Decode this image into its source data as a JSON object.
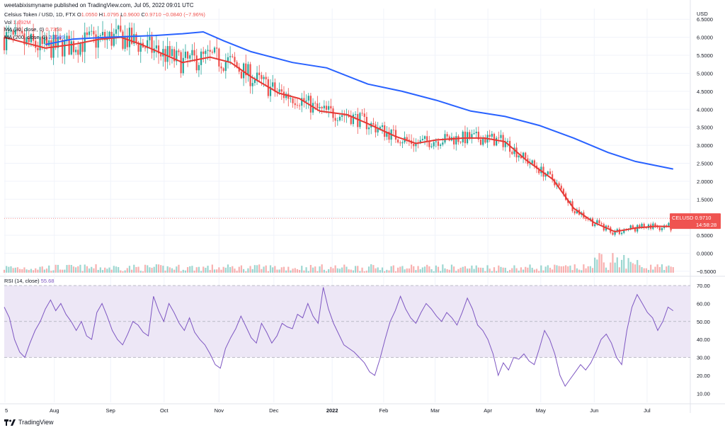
{
  "header": {
    "publisher_line": "weetabixismyname published on TradingView.com, Jul 05, 2022 09:01 UTC"
  },
  "legend": {
    "symbol": "Celsius Token / USD, 1D, FTX",
    "o_label": "O",
    "o_value": "1.0550",
    "h_label": "H",
    "h_value": "1.0795",
    "l_label": "L",
    "l_value": "0.9600",
    "c_label": "C",
    "c_value": "0.9710",
    "change": "−0.0840 (−7.96%)",
    "vol_label": "Vol",
    "vol_value": "1.992M",
    "ma30_label": "MA (30, close, 0)",
    "ma30_value": "0.7358",
    "ma200_label": "MA (200, close, 0)",
    "ma200_value": "2.3389"
  },
  "rsi_legend": {
    "label": "RSI (14, close)",
    "value": "55.68"
  },
  "footer": {
    "brand": "TradingView"
  },
  "colors": {
    "up": "#26a69a",
    "down": "#ef5350",
    "ma30": "#e53935",
    "ma200": "#2962ff",
    "rsi": "#7e57c2",
    "rsi_band": "#ede7f6",
    "grid": "#f0f3fa"
  },
  "chart_data": [
    {
      "type": "candlestick",
      "title": "Celsius Token / USD, 1D, FTX",
      "ylabel": "USD",
      "ylim": [
        -0.6,
        6.8
      ],
      "y_ticks": [
        "6.5000",
        "6.0000",
        "5.5000",
        "5.0000",
        "4.5000",
        "4.0000",
        "3.5000",
        "3.0000",
        "2.5000",
        "2.0000",
        "1.5000",
        "1.0000",
        "0.5000",
        "0.0000",
        "−0.5000"
      ],
      "x_ticks": [
        "5",
        "Aug",
        "Sep",
        "Oct",
        "Nov",
        "Dec",
        "2022",
        "Feb",
        "Mar",
        "Apr",
        "May",
        "Jun",
        "Jul"
      ],
      "last_price_label": {
        "symbol": "CELUSD",
        "price": "0.9710",
        "countdown": "14:58:28",
        "value": 0.971
      },
      "series": [
        {
          "name": "MA (30, close, 0)",
          "points": [
            [
              0,
              6.0
            ],
            [
              0.03,
              5.85
            ],
            [
              0.06,
              5.7
            ],
            [
              0.1,
              5.8
            ],
            [
              0.14,
              5.95
            ],
            [
              0.17,
              6.0
            ],
            [
              0.2,
              5.8
            ],
            [
              0.23,
              5.55
            ],
            [
              0.26,
              5.3
            ],
            [
              0.3,
              5.45
            ],
            [
              0.33,
              5.3
            ],
            [
              0.36,
              4.9
            ],
            [
              0.4,
              4.45
            ],
            [
              0.43,
              4.3
            ],
            [
              0.46,
              3.95
            ],
            [
              0.5,
              3.85
            ],
            [
              0.53,
              3.6
            ],
            [
              0.57,
              3.25
            ],
            [
              0.6,
              3.05
            ],
            [
              0.63,
              3.15
            ],
            [
              0.67,
              3.2
            ],
            [
              0.7,
              3.2
            ],
            [
              0.73,
              3.1
            ],
            [
              0.76,
              2.6
            ],
            [
              0.8,
              2.05
            ],
            [
              0.83,
              1.25
            ],
            [
              0.86,
              0.85
            ],
            [
              0.89,
              0.6
            ],
            [
              0.92,
              0.7
            ],
            [
              0.95,
              0.75
            ],
            [
              0.975,
              0.74
            ]
          ]
        },
        {
          "name": "MA (200, close, 0)",
          "points": [
            [
              0.06,
              5.8
            ],
            [
              0.1,
              5.95
            ],
            [
              0.15,
              6.0
            ],
            [
              0.22,
              6.05
            ],
            [
              0.26,
              6.1
            ],
            [
              0.29,
              6.15
            ],
            [
              0.32,
              5.9
            ],
            [
              0.36,
              5.6
            ],
            [
              0.42,
              5.3
            ],
            [
              0.47,
              5.15
            ],
            [
              0.53,
              4.7
            ],
            [
              0.58,
              4.5
            ],
            [
              0.63,
              4.25
            ],
            [
              0.68,
              3.95
            ],
            [
              0.73,
              3.8
            ],
            [
              0.78,
              3.55
            ],
            [
              0.83,
              3.2
            ],
            [
              0.88,
              2.8
            ],
            [
              0.92,
              2.55
            ],
            [
              0.975,
              2.34
            ]
          ]
        }
      ]
    },
    {
      "type": "line",
      "title": "RSI (14, close)",
      "ylim": [
        5,
        72
      ],
      "y_ticks": [
        "70.00",
        "60.00",
        "50.00",
        "40.00",
        "30.00",
        "20.00",
        "10.00"
      ],
      "band": [
        30,
        70
      ],
      "values": [
        58,
        52,
        40,
        33,
        30,
        38,
        45,
        50,
        57,
        62,
        56,
        60,
        54,
        50,
        45,
        50,
        42,
        40,
        55,
        60,
        53,
        45,
        40,
        37,
        43,
        50,
        48,
        44,
        42,
        64,
        56,
        50,
        60,
        55,
        49,
        45,
        52,
        44,
        40,
        37,
        32,
        26,
        24,
        35,
        41,
        46,
        53,
        47,
        41,
        38,
        49,
        44,
        38,
        42,
        49,
        47,
        46,
        54,
        52,
        60,
        53,
        49,
        69,
        57,
        49,
        43,
        37,
        35,
        33,
        30,
        27,
        22,
        20,
        29,
        40,
        50,
        56,
        64,
        57,
        52,
        49,
        55,
        60,
        57,
        53,
        50,
        55,
        52,
        48,
        55,
        63,
        57,
        48,
        45,
        40,
        32,
        20,
        27,
        23,
        30,
        29,
        32,
        28,
        26,
        35,
        45,
        40,
        32,
        20,
        14,
        18,
        22,
        26,
        23,
        27,
        33,
        40,
        43,
        38,
        30,
        26,
        45,
        58,
        65,
        60,
        55,
        52,
        45,
        50,
        58,
        56
      ]
    }
  ]
}
